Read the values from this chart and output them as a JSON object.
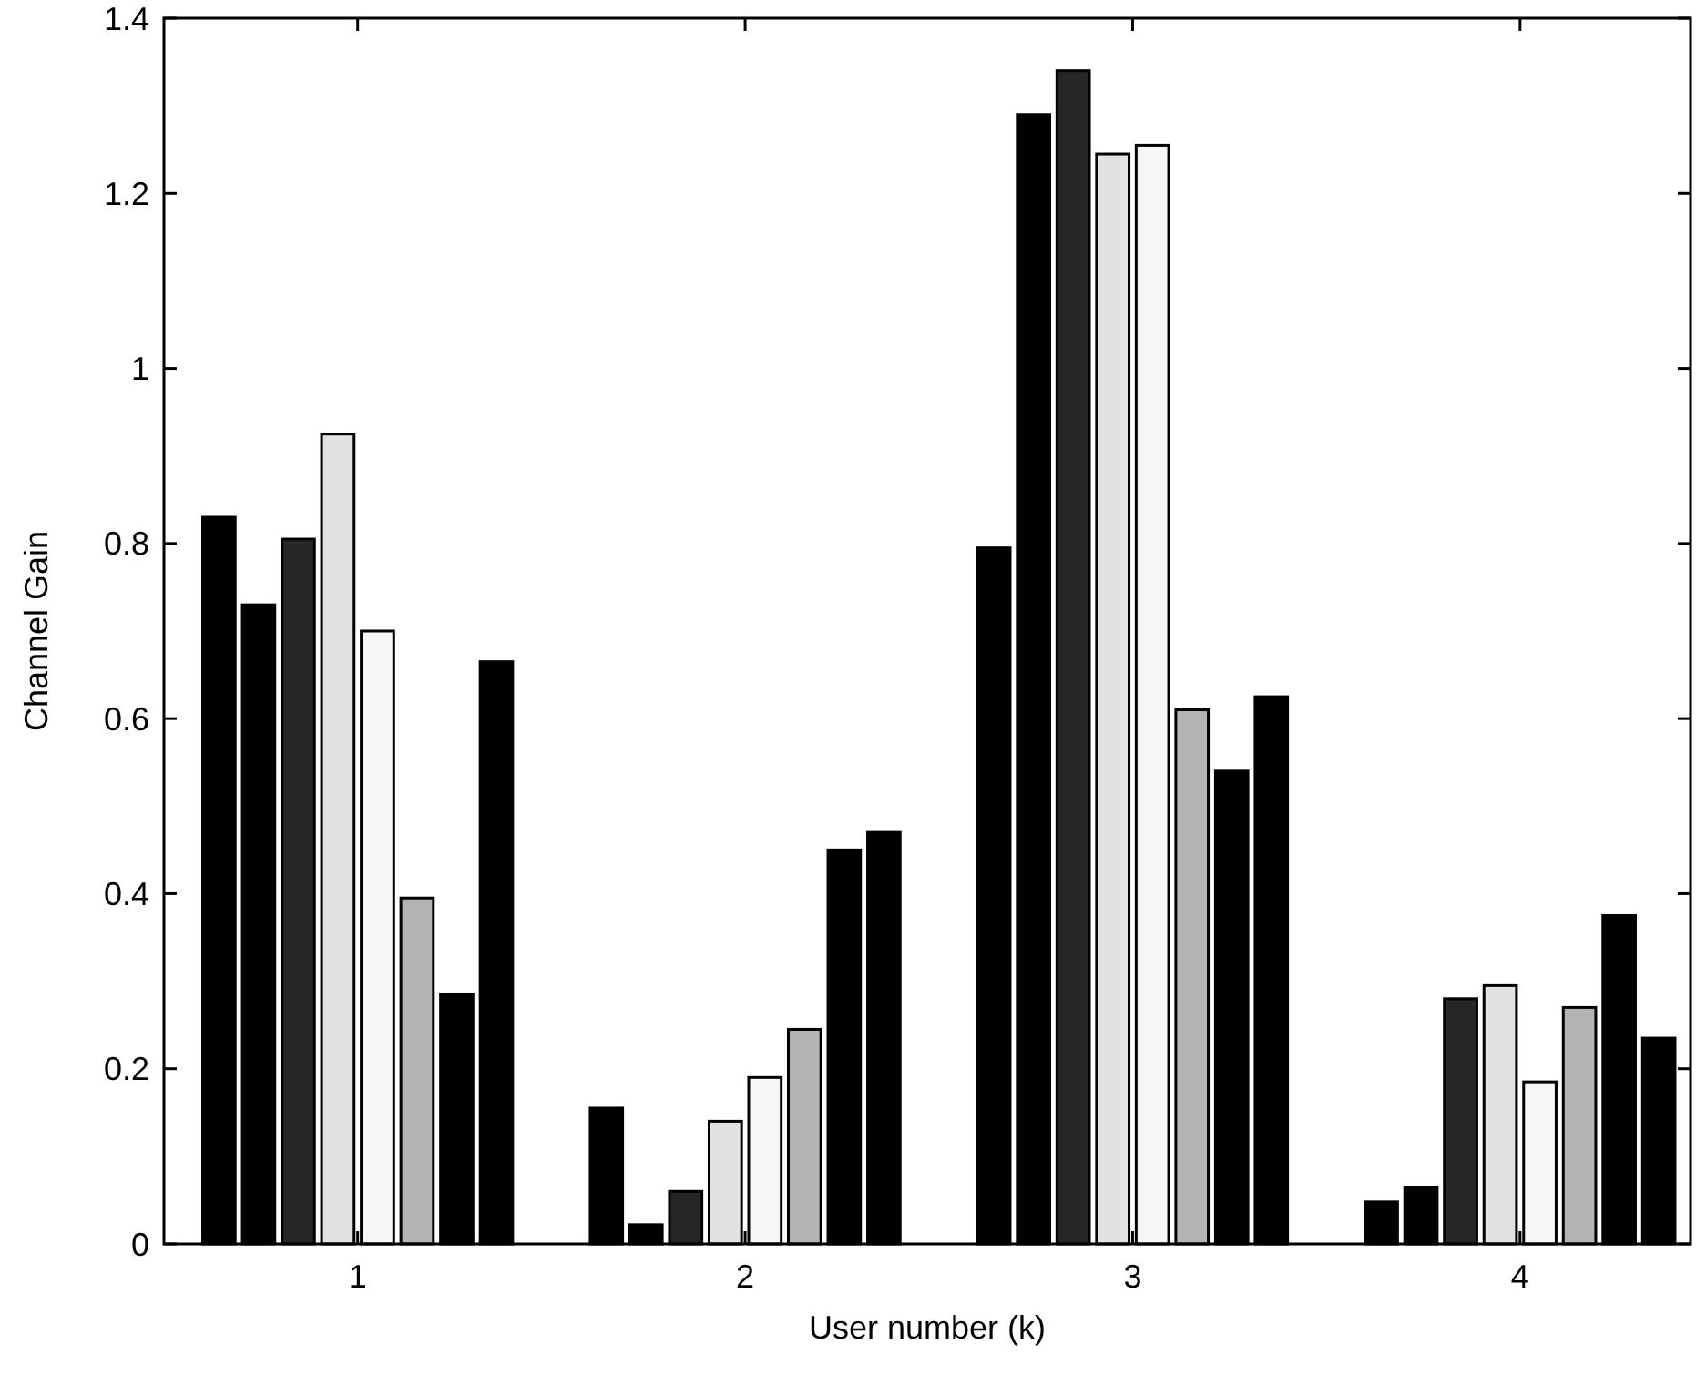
{
  "chart_data": {
    "type": "bar",
    "xlabel": "User number (k)",
    "ylabel": "Channel Gain",
    "categories": [
      "1",
      "2",
      "3",
      "4"
    ],
    "series": [
      {
        "color": "#000000",
        "values": [
          0.83,
          0.155,
          0.795,
          0.048
        ]
      },
      {
        "color": "#000000",
        "values": [
          0.73,
          0.022,
          1.29,
          0.065
        ]
      },
      {
        "color": "#262626",
        "values": [
          0.805,
          0.06,
          1.34,
          0.28
        ]
      },
      {
        "color": "#e2e2e2",
        "values": [
          0.925,
          0.14,
          1.245,
          0.295
        ]
      },
      {
        "color": "#f6f6f6",
        "values": [
          0.7,
          0.19,
          1.255,
          0.185
        ]
      },
      {
        "color": "#b4b4b4",
        "values": [
          0.395,
          0.245,
          0.61,
          0.27
        ]
      },
      {
        "color": "#000000",
        "values": [
          0.285,
          0.45,
          0.54,
          0.375
        ]
      },
      {
        "color": "#000000",
        "values": [
          0.665,
          0.47,
          0.625,
          0.235
        ]
      }
    ],
    "ylim": [
      0,
      1.4
    ],
    "yticks": [
      0,
      0.2,
      0.4,
      0.6,
      0.8,
      1,
      1.2,
      1.4
    ],
    "grid": false
  }
}
